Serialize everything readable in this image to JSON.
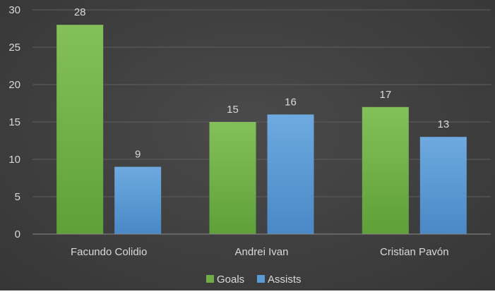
{
  "chart_data": {
    "type": "bar",
    "categories": [
      "Facundo Colidio",
      "Andrei Ivan",
      "Cristian Pavón"
    ],
    "series": [
      {
        "name": "Goals",
        "values": [
          28,
          15,
          17
        ],
        "color": "#70ad47"
      },
      {
        "name": "Assists",
        "values": [
          9,
          16,
          13
        ],
        "color": "#5b9bd5"
      }
    ],
    "ylim": [
      0,
      30
    ],
    "yticks": [
      0,
      5,
      10,
      15,
      20,
      25,
      30
    ],
    "grid": true,
    "legend": "bottom",
    "data_labels": true,
    "colors": {
      "background": "#404040",
      "grid": "#5e5e5e",
      "text": "#d9d9d9"
    }
  }
}
